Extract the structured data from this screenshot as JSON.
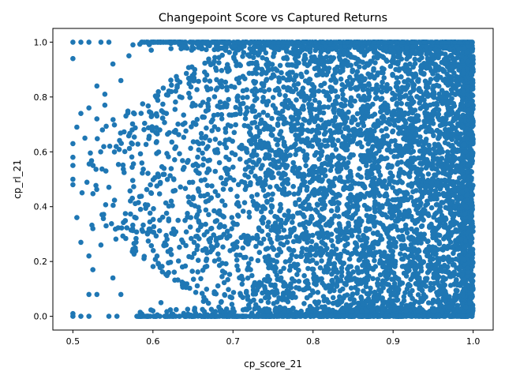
{
  "chart_data": {
    "type": "scatter",
    "title": "Changepoint Score vs Captured Returns",
    "xlabel": "cp_score_21",
    "ylabel": "cp_rl_21",
    "xlim": [
      0.475,
      1.025
    ],
    "ylim": [
      -0.05,
      1.05
    ],
    "xticks": [
      0.5,
      0.6,
      0.7,
      0.8,
      0.9,
      1.0
    ],
    "xtick_labels": [
      "0.5",
      "0.6",
      "0.7",
      "0.8",
      "0.9",
      "1.0"
    ],
    "yticks": [
      0.0,
      0.2,
      0.4,
      0.6,
      0.8,
      1.0
    ],
    "ytick_labels": [
      "0.0",
      "0.2",
      "0.4",
      "0.6",
      "0.8",
      "1.0"
    ],
    "grid": false,
    "legend": "none",
    "marker_color": "#1f77b4",
    "series": [
      {
        "points": [
          [
            0.5,
            1.0
          ],
          [
            0.5,
            0.94
          ],
          [
            0.51,
            1.0
          ],
          [
            0.52,
            1.0
          ],
          [
            0.535,
            1.0
          ],
          [
            0.545,
            1.0
          ],
          [
            0.5,
            0.01
          ],
          [
            0.5,
            0.0
          ],
          [
            0.51,
            0.0
          ],
          [
            0.52,
            0.0
          ],
          [
            0.545,
            0.0
          ],
          [
            0.555,
            0.0
          ],
          [
            0.52,
            0.08
          ],
          [
            0.53,
            0.08
          ],
          [
            0.54,
            0.81
          ],
          [
            0.53,
            0.84
          ],
          [
            0.55,
            0.92
          ],
          [
            0.505,
            0.69
          ],
          [
            0.51,
            0.74
          ],
          [
            0.505,
            0.36
          ],
          [
            0.51,
            0.27
          ],
          [
            0.52,
            0.22
          ],
          [
            0.525,
            0.17
          ],
          [
            0.55,
            0.14
          ],
          [
            0.56,
            0.08
          ],
          [
            0.57,
            0.95
          ],
          [
            0.575,
            0.99
          ],
          [
            0.5,
            0.58
          ],
          [
            0.5,
            0.55
          ],
          [
            0.5,
            0.48
          ],
          [
            0.5,
            0.63
          ],
          [
            0.5,
            0.5
          ],
          [
            0.52,
            0.76
          ],
          [
            0.53,
            0.72
          ],
          [
            0.54,
            0.77
          ],
          [
            0.525,
            0.32
          ],
          [
            0.535,
            0.26
          ],
          [
            0.56,
            0.86
          ],
          [
            0.58,
            0.0
          ],
          [
            0.59,
            0.0
          ],
          [
            0.6,
            0.02
          ],
          [
            0.61,
            0.05
          ]
        ]
      }
    ]
  }
}
